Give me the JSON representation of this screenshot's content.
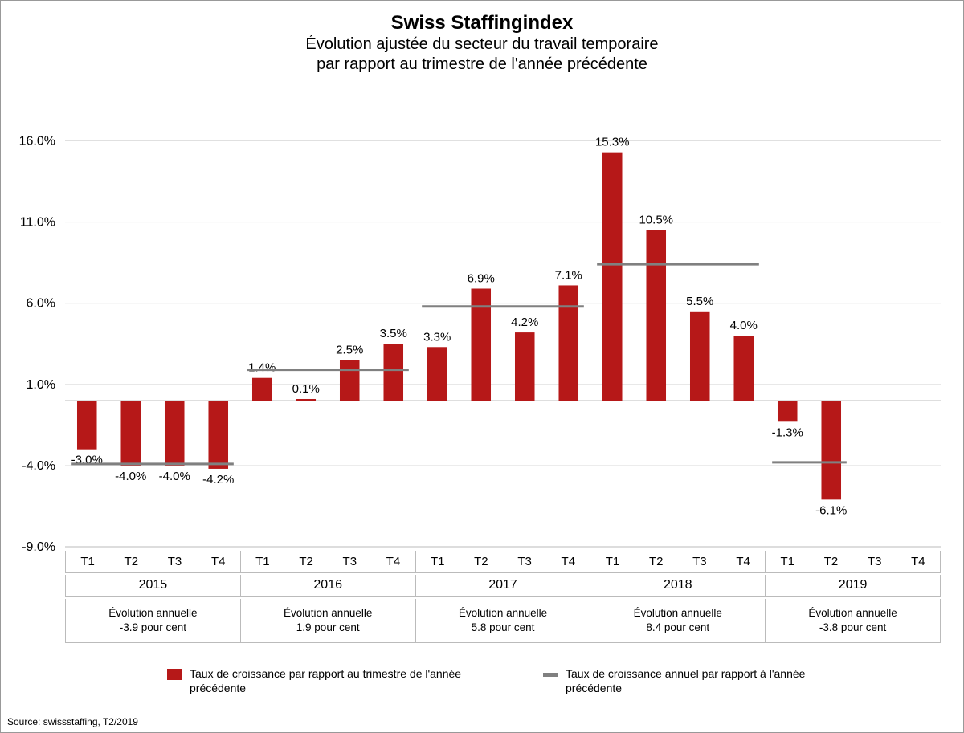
{
  "title": "Swiss Staffingindex",
  "subtitle_line1": "Évolution ajustée du secteur du travail temporaire",
  "subtitle_line2": "par rapport au trimestre de l'année précédente",
  "source": "Source: swissstaffing, T2/2019",
  "chart": {
    "type": "bar",
    "ylim_min": -9.0,
    "ylim_max": 18.2,
    "yticks": [
      -9.0,
      -4.0,
      1.0,
      6.0,
      11.0,
      16.0
    ],
    "ytick_labels": [
      "-9.0%",
      "-4.0%",
      "1.0%",
      "6.0%",
      "11.0%",
      "16.0%"
    ],
    "bar_color": "#b61818",
    "avg_line_color": "#808080",
    "grid_color": "#e0e0e0",
    "background_color": "#ffffff",
    "quarter_labels": [
      "T1",
      "T2",
      "T3",
      "T4"
    ],
    "years": [
      {
        "year": "2015",
        "annual_label": "Évolution annuelle",
        "annual_value": "-3.9 pour cent",
        "avg": -3.9,
        "quarters": [
          {
            "value": -3.0,
            "label": "-3.0%"
          },
          {
            "value": -4.0,
            "label": "-4.0%"
          },
          {
            "value": -4.0,
            "label": "-4.0%"
          },
          {
            "value": -4.2,
            "label": "-4.2%"
          }
        ]
      },
      {
        "year": "2016",
        "annual_label": "Évolution annuelle",
        "annual_value": "1.9 pour cent",
        "avg": 1.9,
        "quarters": [
          {
            "value": 1.4,
            "label": "1.4%"
          },
          {
            "value": 0.1,
            "label": "0.1%"
          },
          {
            "value": 2.5,
            "label": "2.5%"
          },
          {
            "value": 3.5,
            "label": "3.5%"
          }
        ]
      },
      {
        "year": "2017",
        "annual_label": "Évolution annuelle",
        "annual_value": "5.8 pour cent",
        "avg": 5.8,
        "quarters": [
          {
            "value": 3.3,
            "label": "3.3%"
          },
          {
            "value": 6.9,
            "label": "6.9%"
          },
          {
            "value": 4.2,
            "label": "4.2%"
          },
          {
            "value": 7.1,
            "label": "7.1%"
          }
        ]
      },
      {
        "year": "2018",
        "annual_label": "Évolution annuelle",
        "annual_value": "8.4 pour cent",
        "avg": 8.4,
        "quarters": [
          {
            "value": 15.3,
            "label": "15.3%"
          },
          {
            "value": 10.5,
            "label": "10.5%"
          },
          {
            "value": 5.5,
            "label": "5.5%"
          },
          {
            "value": 4.0,
            "label": "4.0%"
          }
        ]
      },
      {
        "year": "2019",
        "annual_label": "Évolution annuelle",
        "annual_value": "-3.8 pour cent",
        "avg": -3.8,
        "avg_span": 2,
        "quarters": [
          {
            "value": -1.3,
            "label": "-1.3%"
          },
          {
            "value": -6.1,
            "label": "-6.1%"
          },
          {
            "value": null,
            "label": ""
          },
          {
            "value": null,
            "label": ""
          }
        ]
      }
    ]
  },
  "legend": {
    "bar_label": "Taux de croissance par rapport au trimestre de l'année précédente",
    "line_label": "Taux de croissance annuel par rapport à l'année précédente"
  }
}
